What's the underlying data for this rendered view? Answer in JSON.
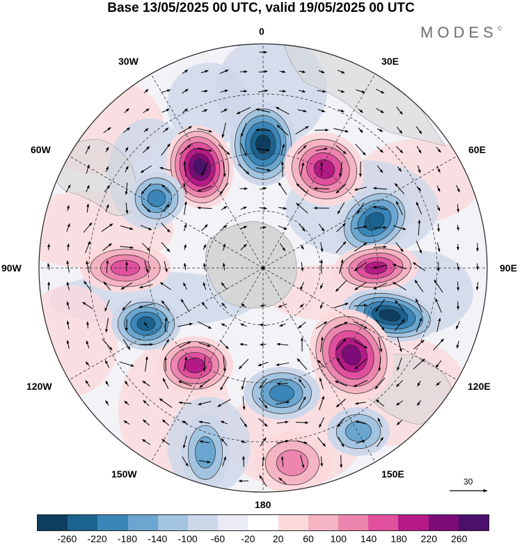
{
  "title": "Base 13/05/2025 00 UTC, valid 19/05/2025 00 UTC",
  "brand": "MODES",
  "brand_mark": "©",
  "longitude_labels": {
    "lon_0": "0",
    "lon_30e": "30E",
    "lon_60e": "60E",
    "lon_90e": "90E",
    "lon_120e": "120E",
    "lon_150e": "150E",
    "lon_180": "180",
    "lon_150w": "150W",
    "lon_120w": "120W",
    "lon_90w": "90W",
    "lon_60w": "60W",
    "lon_30w": "30W"
  },
  "reference_vector_label": "30",
  "colorbar": {
    "colors": [
      "#0d3d5f",
      "#1c628f",
      "#3a86b8",
      "#6aa6cf",
      "#a3c4e0",
      "#cdd7ea",
      "#ebebf4",
      "#ffffff",
      "#fbd9dc",
      "#f5b4c3",
      "#ec86ae",
      "#e0509d",
      "#b61a87",
      "#7d0c78",
      "#4b0f6c"
    ],
    "ticks": [
      "-260",
      "-220",
      "-180",
      "-140",
      "-100",
      "-60",
      "-20",
      "20",
      "60",
      "100",
      "140",
      "180",
      "220",
      "260"
    ]
  },
  "color_scale": {
    "neg1": "#cdd7ea",
    "neg2": "#a3c4e0",
    "neg3": "#6aa6cf",
    "neg4": "#3a86b8",
    "neg5": "#1c628f",
    "neg6": "#0d3d5f",
    "pos1": "#fbd9dc",
    "pos2": "#f5b4c3",
    "pos3": "#ec86ae",
    "pos4": "#e0509d",
    "pos5": "#b61a87",
    "pos6": "#7d0c78",
    "pos7": "#4b0f6c",
    "land": "#d6d6d6"
  }
}
